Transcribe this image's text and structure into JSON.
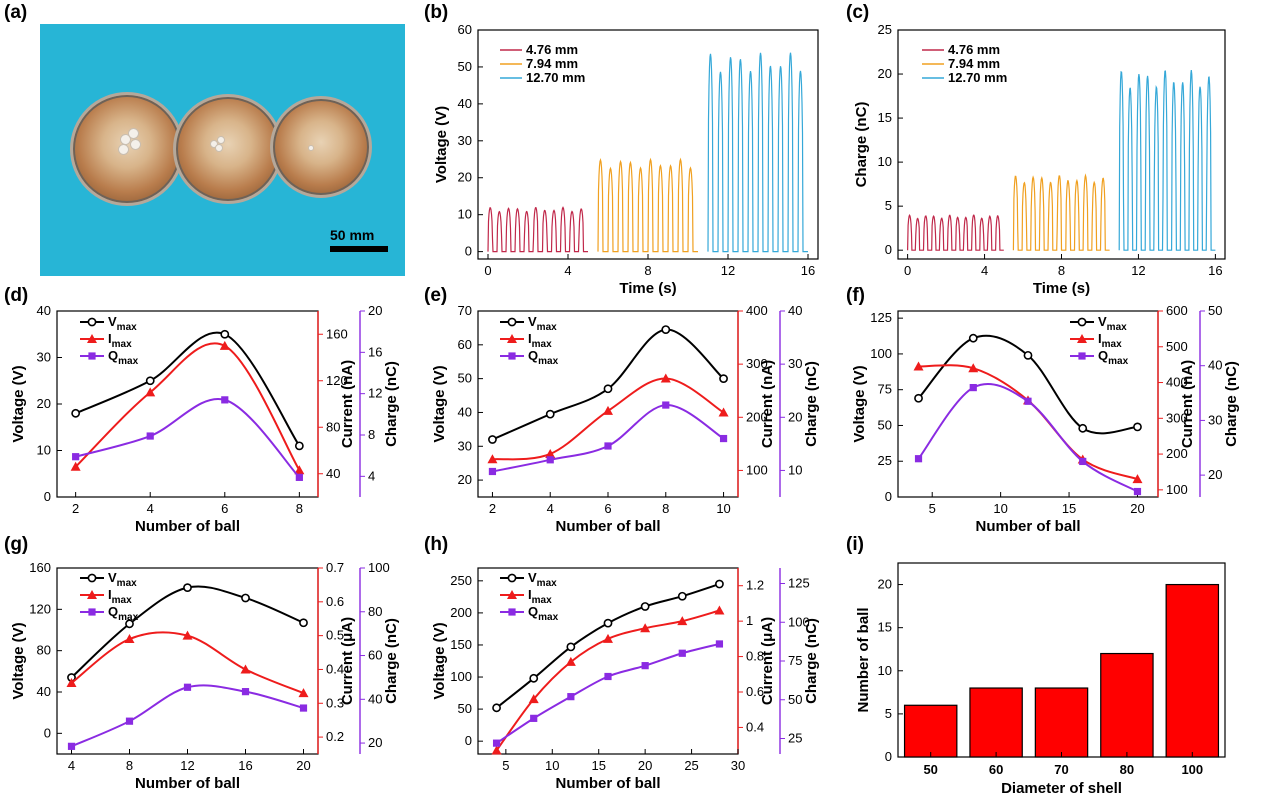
{
  "panel_labels": [
    "(a)",
    "(b)",
    "(c)",
    "(d)",
    "(e)",
    "(f)",
    "(g)",
    "(h)",
    "(i)"
  ],
  "photo": {
    "scale_text": "50 mm",
    "background": "#27b5d6"
  },
  "colors": {
    "red_series": "#c0284a",
    "orange_series": "#f0a020",
    "blue_series": "#35a8d8",
    "black": "#000000",
    "red": "#ee1c1c",
    "purple": "#8a2be2",
    "bar": "#ff0000"
  },
  "chart_data": [
    {
      "id": "b",
      "type": "line",
      "xlabel": "Time (s)",
      "ylabel": "Voltage (V)",
      "xlim": [
        -0.5,
        16.5
      ],
      "ylim": [
        -2,
        60
      ],
      "xticks": [
        0,
        4,
        8,
        12,
        16
      ],
      "yticks": [
        0,
        10,
        20,
        30,
        40,
        50,
        60
      ],
      "legend": "top-left",
      "series": [
        {
          "name": "4.76 mm",
          "t_start": 0,
          "t_end": 5,
          "peak": 12,
          "cycles": 11
        },
        {
          "name": "7.94 mm",
          "t_start": 5.5,
          "t_end": 10.5,
          "peak": 25,
          "cycles": 10
        },
        {
          "name": "12.70 mm",
          "t_start": 11,
          "t_end": 16,
          "peak": 54,
          "cycles": 10
        }
      ]
    },
    {
      "id": "c",
      "type": "line",
      "xlabel": "Time (s)",
      "ylabel": "Charge (nC)",
      "xlim": [
        -0.5,
        16.5
      ],
      "ylim": [
        -1,
        25
      ],
      "xticks": [
        0,
        4,
        8,
        12,
        16
      ],
      "yticks": [
        0,
        5,
        10,
        15,
        20,
        25
      ],
      "legend": "top-left",
      "series": [
        {
          "name": "4.76 mm",
          "t_start": 0,
          "t_end": 5,
          "peak": 4,
          "cycles": 12
        },
        {
          "name": "7.94 mm",
          "t_start": 5.5,
          "t_end": 10.5,
          "peak": 8.5,
          "cycles": 11
        },
        {
          "name": "12.70 mm",
          "t_start": 11,
          "t_end": 16,
          "peak": 20.5,
          "cycles": 11
        }
      ]
    },
    {
      "id": "d",
      "type": "line",
      "xlabel": "Number of ball",
      "xlim": [
        1.5,
        8.5
      ],
      "xticks": [
        2,
        4,
        6,
        8
      ],
      "axes": [
        {
          "label": "Voltage (V)",
          "lim": [
            0,
            40
          ],
          "ticks": [
            0,
            10,
            20,
            30,
            40
          ]
        },
        {
          "label": "Current (nA)",
          "lim": [
            20,
            180
          ],
          "ticks": [
            40,
            80,
            120,
            160
          ]
        },
        {
          "label": "Charge (nC)",
          "lim": [
            2,
            20
          ],
          "ticks": [
            4,
            8,
            12,
            16,
            20
          ]
        }
      ],
      "legend": "top-left",
      "series": [
        {
          "name": "V",
          "sub": "max",
          "x": [
            2,
            4,
            6,
            8
          ],
          "y": [
            18,
            25,
            35,
            11
          ]
        },
        {
          "name": "I",
          "sub": "max",
          "x": [
            2,
            4,
            6,
            8
          ],
          "y": [
            46,
            110,
            150,
            43
          ]
        },
        {
          "name": "Q",
          "sub": "max",
          "x": [
            2,
            4,
            6,
            8
          ],
          "y": [
            5.9,
            7.9,
            11.4,
            3.9
          ]
        }
      ]
    },
    {
      "id": "e",
      "type": "line",
      "xlabel": "Number of ball",
      "xlim": [
        1.5,
        10.5
      ],
      "xticks": [
        2,
        4,
        6,
        8,
        10
      ],
      "axes": [
        {
          "label": "Voltage (V)",
          "lim": [
            15,
            70
          ],
          "ticks": [
            20,
            30,
            40,
            50,
            60,
            70
          ]
        },
        {
          "label": "Current (nA)",
          "lim": [
            50,
            400
          ],
          "ticks": [
            100,
            200,
            300,
            400
          ]
        },
        {
          "label": "Charge (nC)",
          "lim": [
            5,
            40
          ],
          "ticks": [
            10,
            20,
            30,
            40
          ]
        }
      ],
      "legend": "top-left",
      "series": [
        {
          "name": "V",
          "sub": "max",
          "x": [
            2,
            4,
            6,
            8,
            10
          ],
          "y": [
            32,
            39.5,
            47,
            64.5,
            50
          ]
        },
        {
          "name": "I",
          "sub": "max",
          "x": [
            2,
            4,
            6,
            8,
            10
          ],
          "y": [
            121,
            131,
            212,
            273,
            209
          ]
        },
        {
          "name": "Q",
          "sub": "max",
          "x": [
            2,
            4,
            6,
            8,
            10
          ],
          "y": [
            9.8,
            12,
            14.6,
            22.3,
            16
          ]
        }
      ]
    },
    {
      "id": "f",
      "type": "line",
      "xlabel": "Number of ball",
      "xlim": [
        2.5,
        21.5
      ],
      "xticks": [
        5,
        10,
        15,
        20
      ],
      "axes": [
        {
          "label": "Voltage (V)",
          "lim": [
            0,
            130
          ],
          "ticks": [
            0,
            25,
            50,
            75,
            100,
            125
          ]
        },
        {
          "label": "Current (nA)",
          "lim": [
            80,
            600
          ],
          "ticks": [
            100,
            200,
            300,
            400,
            500,
            600
          ]
        },
        {
          "label": "Charge (nC)",
          "lim": [
            16,
            50
          ],
          "ticks": [
            20,
            30,
            40,
            50
          ]
        }
      ],
      "legend": "top-right",
      "series": [
        {
          "name": "V",
          "sub": "max",
          "x": [
            4,
            8,
            12,
            16,
            20
          ],
          "y": [
            69,
            111,
            99,
            48,
            49
          ]
        },
        {
          "name": "I",
          "sub": "max",
          "x": [
            4,
            8,
            12,
            16,
            20
          ],
          "y": [
            445,
            440,
            350,
            185,
            130
          ]
        },
        {
          "name": "Q",
          "sub": "max",
          "x": [
            4,
            8,
            12,
            16,
            20
          ],
          "y": [
            23,
            36,
            33.5,
            22.5,
            17
          ]
        }
      ]
    },
    {
      "id": "g",
      "type": "line",
      "xlabel": "Number of ball",
      "xlim": [
        3,
        21
      ],
      "xticks": [
        4,
        8,
        12,
        16,
        20
      ],
      "axes": [
        {
          "label": "Voltage (V)",
          "lim": [
            -20,
            160
          ],
          "ticks": [
            0,
            40,
            80,
            120,
            160
          ]
        },
        {
          "label": "Current (μA)",
          "lim": [
            0.15,
            0.7
          ],
          "ticks": [
            0.2,
            0.3,
            0.4,
            0.5,
            0.6,
            0.7
          ]
        },
        {
          "label": "Charge (nC)",
          "lim": [
            15,
            100
          ],
          "ticks": [
            20,
            40,
            60,
            80,
            100
          ]
        }
      ],
      "legend": "top-left",
      "series": [
        {
          "name": "V",
          "sub": "max",
          "x": [
            4,
            8,
            12,
            16,
            20
          ],
          "y": [
            54,
            106,
            141,
            131,
            107
          ]
        },
        {
          "name": "I",
          "sub": "max",
          "x": [
            4,
            8,
            12,
            16,
            20
          ],
          "y": [
            0.36,
            0.49,
            0.5,
            0.4,
            0.33
          ]
        },
        {
          "name": "Q",
          "sub": "max",
          "x": [
            4,
            8,
            12,
            16,
            20
          ],
          "y": [
            18.5,
            30,
            45.5,
            43.5,
            36
          ]
        }
      ]
    },
    {
      "id": "h",
      "type": "line",
      "xlabel": "Number of ball",
      "xlim": [
        2,
        30
      ],
      "xticks": [
        5,
        10,
        15,
        20,
        25,
        30
      ],
      "axes": [
        {
          "label": "Voltage (V)",
          "lim": [
            -20,
            270
          ],
          "ticks": [
            0,
            50,
            100,
            150,
            200,
            250
          ]
        },
        {
          "label": "Current (μA)",
          "lim": [
            0.25,
            1.3
          ],
          "ticks": [
            0.4,
            0.6,
            0.8,
            1.0,
            1.2
          ]
        },
        {
          "label": "Charge (nC)",
          "lim": [
            15,
            135
          ],
          "ticks": [
            25,
            50,
            75,
            100,
            125
          ]
        }
      ],
      "legend": "top-left",
      "series": [
        {
          "name": "V",
          "sub": "max",
          "x": [
            4,
            8,
            12,
            16,
            20,
            24,
            28
          ],
          "y": [
            52,
            98,
            147,
            184,
            210,
            226,
            245
          ]
        },
        {
          "name": "I",
          "sub": "max",
          "x": [
            4,
            8,
            12,
            16,
            20,
            24,
            28
          ],
          "y": [
            0.27,
            0.56,
            0.77,
            0.9,
            0.96,
            1.0,
            1.06
          ]
        },
        {
          "name": "Q",
          "sub": "max",
          "x": [
            4,
            8,
            12,
            16,
            20,
            24,
            28
          ],
          "y": [
            22,
            38,
            52,
            65,
            72,
            80,
            86
          ]
        }
      ]
    },
    {
      "id": "i",
      "type": "bar",
      "xlabel": "Diameter of shell",
      "ylabel": "Number of ball",
      "categories": [
        "50",
        "60",
        "70",
        "80",
        "100"
      ],
      "values": [
        6,
        8,
        8,
        12,
        20
      ],
      "ylim": [
        0,
        22.5
      ],
      "yticks": [
        0,
        5,
        10,
        15,
        20
      ]
    }
  ]
}
